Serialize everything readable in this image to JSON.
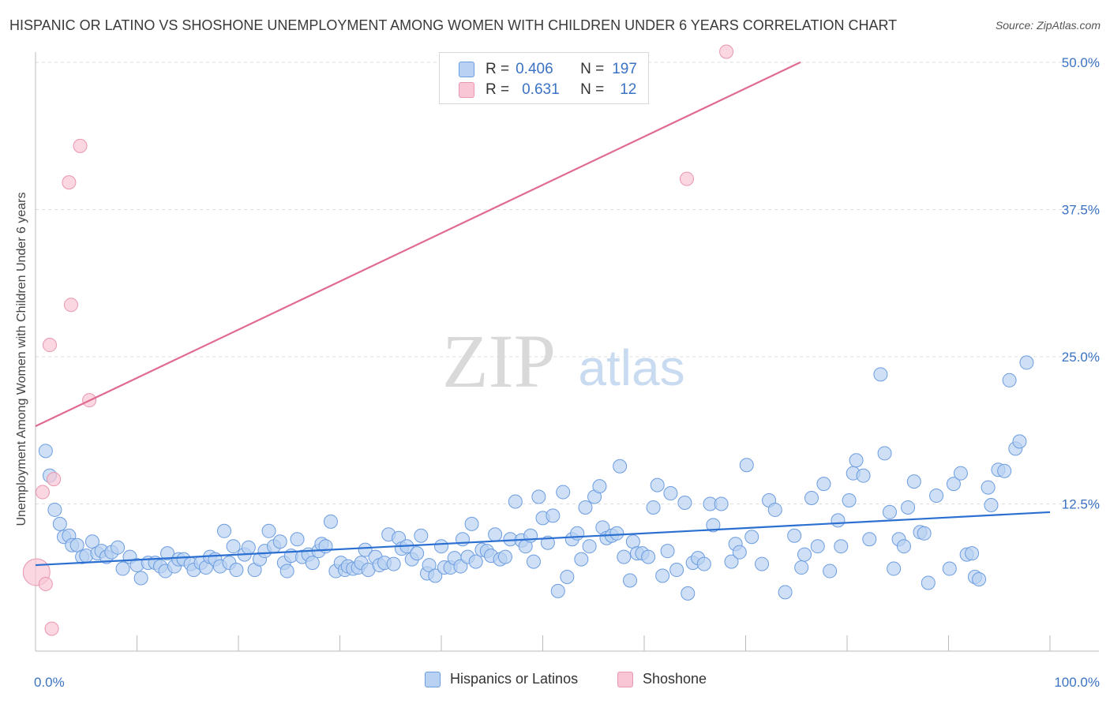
{
  "title": "HISPANIC OR LATINO VS SHOSHONE UNEMPLOYMENT AMONG WOMEN WITH CHILDREN UNDER 6 YEARS CORRELATION CHART",
  "source": "Source: ZipAtlas.com",
  "watermark": {
    "zip": "ZIP",
    "atlas": "atlas"
  },
  "colors": {
    "blue_fill": "#b9d1f2",
    "blue_stroke": "#6c9de0",
    "blue_line": "#2b6fd1",
    "pink_fill": "#f8c6d4",
    "pink_stroke": "#e996ae",
    "pink_line": "#e06a92",
    "tick_label": "#3a72c4",
    "grid": "#e0e0e0"
  },
  "legend_top": [
    {
      "r_label": "R =",
      "r_value": "0.406",
      "n_label": "N =",
      "n_value": "197",
      "color": "blue"
    },
    {
      "r_label": "R =",
      "r_value": "0.631",
      "n_label": "N =",
      "n_value": "12",
      "color": "pink"
    }
  ],
  "legend_bottom": [
    "Hispanics or Latinos",
    "Shoshone"
  ],
  "chart_data": {
    "type": "scatter",
    "title": "HISPANIC OR LATINO VS SHOSHONE UNEMPLOYMENT AMONG WOMEN WITH CHILDREN UNDER 6 YEARS CORRELATION CHART",
    "xlabel": "",
    "ylabel": "Unemployment Among Women with Children Under 6 years",
    "xlim": [
      0,
      100
    ],
    "ylim": [
      0,
      51
    ],
    "x_tick_labels": [
      "0.0%",
      "100.0%"
    ],
    "y_ticks": [
      12.5,
      25.0,
      37.5,
      50.0
    ],
    "y_tick_labels": [
      "12.5%",
      "25.0%",
      "37.5%",
      "50.0%"
    ],
    "grid": "horizontal dashed",
    "legend_position": "top-center",
    "series": [
      {
        "name": "Hispanics or Latinos",
        "color": "blue",
        "trend": {
          "x": [
            0,
            100
          ],
          "y": [
            7.3,
            11.8
          ]
        },
        "points": [
          [
            1,
            17.0
          ],
          [
            1.4,
            14.9
          ],
          [
            1.9,
            12.0
          ],
          [
            2.4,
            10.8
          ],
          [
            2.8,
            9.7
          ],
          [
            3.3,
            9.8
          ],
          [
            3.6,
            9.0
          ],
          [
            4.1,
            9.0
          ],
          [
            4.6,
            8.0
          ],
          [
            5.0,
            8.1
          ],
          [
            5.6,
            9.3
          ],
          [
            6.1,
            8.3
          ],
          [
            6.5,
            8.5
          ],
          [
            7.0,
            8.0
          ],
          [
            7.5,
            8.4
          ],
          [
            8.1,
            8.8
          ],
          [
            8.6,
            7.0
          ],
          [
            9.3,
            8.0
          ],
          [
            10.0,
            7.3
          ],
          [
            10.4,
            6.2
          ],
          [
            11.1,
            7.5
          ],
          [
            11.8,
            7.5
          ],
          [
            12.3,
            7.2
          ],
          [
            12.8,
            6.8
          ],
          [
            13.0,
            8.3
          ],
          [
            13.7,
            7.2
          ],
          [
            14.1,
            7.8
          ],
          [
            14.6,
            7.8
          ],
          [
            15.3,
            7.4
          ],
          [
            15.6,
            6.9
          ],
          [
            16.3,
            7.5
          ],
          [
            16.8,
            7.1
          ],
          [
            17.2,
            8.0
          ],
          [
            17.7,
            7.8
          ],
          [
            18.2,
            7.2
          ],
          [
            18.6,
            10.2
          ],
          [
            19.1,
            7.5
          ],
          [
            19.5,
            8.9
          ],
          [
            19.8,
            6.9
          ],
          [
            20.6,
            8.2
          ],
          [
            21.0,
            8.8
          ],
          [
            21.6,
            6.9
          ],
          [
            22.1,
            7.8
          ],
          [
            22.6,
            8.5
          ],
          [
            23.0,
            10.2
          ],
          [
            23.5,
            8.9
          ],
          [
            24.1,
            9.3
          ],
          [
            24.5,
            7.5
          ],
          [
            24.8,
            6.8
          ],
          [
            25.2,
            8.1
          ],
          [
            25.8,
            9.5
          ],
          [
            26.3,
            8.0
          ],
          [
            26.9,
            8.2
          ],
          [
            27.3,
            7.5
          ],
          [
            27.9,
            8.5
          ],
          [
            28.2,
            9.1
          ],
          [
            28.6,
            8.9
          ],
          [
            29.1,
            11.0
          ],
          [
            29.6,
            6.8
          ],
          [
            30.1,
            7.5
          ],
          [
            30.5,
            6.9
          ],
          [
            30.8,
            7.2
          ],
          [
            31.3,
            7.0
          ],
          [
            31.8,
            7.1
          ],
          [
            32.1,
            7.5
          ],
          [
            32.5,
            8.6
          ],
          [
            32.8,
            6.9
          ],
          [
            33.5,
            8.0
          ],
          [
            33.9,
            7.3
          ],
          [
            34.4,
            7.5
          ],
          [
            34.8,
            9.9
          ],
          [
            35.3,
            7.4
          ],
          [
            35.8,
            9.6
          ],
          [
            36.1,
            8.7
          ],
          [
            36.6,
            8.9
          ],
          [
            37.1,
            7.8
          ],
          [
            37.6,
            8.3
          ],
          [
            38.0,
            9.8
          ],
          [
            38.6,
            6.6
          ],
          [
            38.8,
            7.3
          ],
          [
            39.4,
            6.4
          ],
          [
            40.0,
            8.9
          ],
          [
            40.3,
            7.1
          ],
          [
            40.9,
            7.1
          ],
          [
            41.3,
            7.9
          ],
          [
            41.9,
            7.2
          ],
          [
            42.1,
            9.5
          ],
          [
            42.6,
            8.0
          ],
          [
            43.0,
            10.8
          ],
          [
            43.4,
            7.6
          ],
          [
            44.0,
            8.6
          ],
          [
            44.5,
            8.5
          ],
          [
            44.9,
            8.1
          ],
          [
            45.3,
            9.9
          ],
          [
            45.8,
            7.8
          ],
          [
            46.3,
            8.0
          ],
          [
            46.8,
            9.5
          ],
          [
            47.3,
            12.7
          ],
          [
            47.9,
            9.4
          ],
          [
            48.3,
            8.9
          ],
          [
            48.8,
            9.8
          ],
          [
            49.1,
            7.6
          ],
          [
            49.6,
            13.1
          ],
          [
            50.0,
            11.3
          ],
          [
            50.5,
            9.2
          ],
          [
            51.0,
            11.5
          ],
          [
            51.5,
            5.1
          ],
          [
            52.0,
            13.5
          ],
          [
            52.4,
            6.3
          ],
          [
            52.9,
            9.5
          ],
          [
            53.4,
            10.0
          ],
          [
            53.8,
            7.8
          ],
          [
            54.2,
            12.2
          ],
          [
            54.6,
            8.9
          ],
          [
            55.1,
            13.1
          ],
          [
            55.6,
            14.0
          ],
          [
            55.9,
            10.5
          ],
          [
            56.3,
            9.6
          ],
          [
            56.8,
            9.8
          ],
          [
            57.3,
            10.0
          ],
          [
            57.6,
            15.7
          ],
          [
            58.0,
            8.0
          ],
          [
            58.6,
            6.0
          ],
          [
            58.9,
            9.3
          ],
          [
            59.3,
            8.3
          ],
          [
            59.8,
            8.3
          ],
          [
            60.4,
            8.0
          ],
          [
            60.9,
            12.2
          ],
          [
            61.3,
            14.1
          ],
          [
            61.8,
            6.4
          ],
          [
            62.3,
            8.5
          ],
          [
            62.6,
            13.4
          ],
          [
            63.2,
            6.9
          ],
          [
            64.0,
            12.6
          ],
          [
            64.3,
            4.9
          ],
          [
            64.8,
            7.5
          ],
          [
            65.3,
            7.9
          ],
          [
            65.9,
            7.4
          ],
          [
            66.5,
            12.5
          ],
          [
            66.8,
            10.7
          ],
          [
            67.6,
            12.5
          ],
          [
            68.6,
            7.6
          ],
          [
            69.0,
            9.1
          ],
          [
            69.4,
            8.4
          ],
          [
            70.1,
            15.8
          ],
          [
            70.6,
            9.7
          ],
          [
            71.6,
            7.4
          ],
          [
            72.3,
            12.8
          ],
          [
            72.9,
            12.0
          ],
          [
            73.9,
            5.0
          ],
          [
            74.8,
            9.8
          ],
          [
            75.5,
            7.1
          ],
          [
            75.8,
            8.2
          ],
          [
            76.5,
            13.0
          ],
          [
            77.1,
            8.9
          ],
          [
            77.7,
            14.2
          ],
          [
            78.3,
            6.8
          ],
          [
            79.1,
            11.1
          ],
          [
            79.4,
            8.9
          ],
          [
            80.2,
            12.8
          ],
          [
            80.6,
            15.1
          ],
          [
            80.9,
            16.2
          ],
          [
            81.6,
            14.9
          ],
          [
            82.2,
            9.5
          ],
          [
            83.3,
            23.5
          ],
          [
            83.7,
            16.8
          ],
          [
            84.2,
            11.8
          ],
          [
            84.6,
            7.0
          ],
          [
            85.1,
            9.5
          ],
          [
            85.6,
            8.9
          ],
          [
            86.0,
            12.2
          ],
          [
            86.6,
            14.4
          ],
          [
            87.2,
            10.1
          ],
          [
            87.6,
            10.0
          ],
          [
            88.0,
            5.8
          ],
          [
            88.8,
            13.2
          ],
          [
            90.1,
            7.0
          ],
          [
            90.5,
            14.2
          ],
          [
            91.2,
            15.1
          ],
          [
            91.8,
            8.2
          ],
          [
            92.3,
            8.3
          ],
          [
            92.6,
            6.3
          ],
          [
            93.0,
            6.1
          ],
          [
            93.9,
            13.9
          ],
          [
            94.2,
            12.4
          ],
          [
            94.9,
            15.4
          ],
          [
            95.5,
            15.3
          ],
          [
            96.0,
            23.0
          ],
          [
            96.6,
            17.2
          ],
          [
            97.0,
            17.8
          ],
          [
            97.7,
            24.5
          ]
        ]
      },
      {
        "name": "Shoshone",
        "color": "pink",
        "trend": {
          "x": [
            0,
            75.4
          ],
          "y": [
            19.1,
            50.0
          ]
        },
        "points": [
          [
            0.1,
            6.7
          ],
          [
            0.7,
            13.5
          ],
          [
            1.0,
            5.7
          ],
          [
            1.4,
            26.0
          ],
          [
            1.8,
            14.6
          ],
          [
            1.6,
            1.9
          ],
          [
            3.3,
            39.8
          ],
          [
            3.5,
            29.4
          ],
          [
            4.4,
            42.9
          ],
          [
            5.3,
            21.3
          ],
          [
            64.2,
            40.1
          ],
          [
            68.1,
            50.9
          ]
        ]
      }
    ]
  }
}
